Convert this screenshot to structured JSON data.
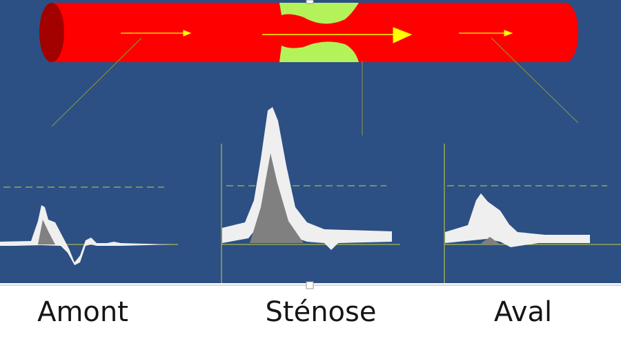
{
  "panels": [
    {
      "label": "Amont"
    },
    {
      "label": "Sténose"
    },
    {
      "label": "Aval"
    }
  ]
}
